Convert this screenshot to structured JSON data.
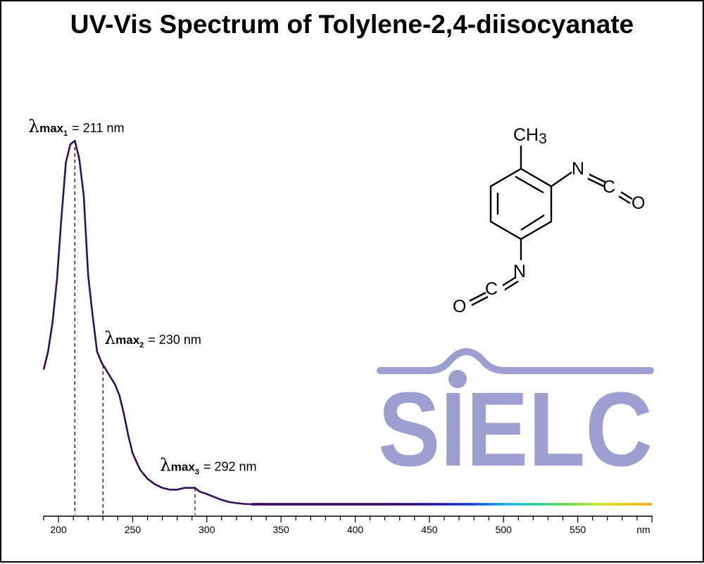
{
  "chart_data": {
    "type": "line",
    "title": "UV-Vis Spectrum of Tolylene-2,4-diisocyanate",
    "xlabel": "nm",
    "ylabel": "",
    "xlim": [
      190,
      600
    ],
    "ylim": [
      0,
      1
    ],
    "grid": false,
    "x_ticks_labeled": [
      200,
      250,
      300,
      350,
      400,
      450,
      500,
      550
    ],
    "x_unit_label": "nm",
    "series": [
      {
        "x": [
          190,
          193,
          196,
          199,
          202,
          205,
          208,
          211,
          214,
          217,
          220,
          223,
          226,
          229,
          232,
          235,
          238,
          241,
          244,
          247,
          250,
          255,
          260,
          265,
          270,
          275,
          280,
          285,
          290,
          292,
          295,
          300,
          305,
          310,
          315,
          320,
          325,
          330,
          340,
          350,
          400,
          450,
          500,
          550,
          600
        ],
        "y": [
          0.37,
          0.42,
          0.5,
          0.62,
          0.79,
          0.94,
          0.99,
          1.0,
          0.95,
          0.85,
          0.63,
          0.52,
          0.42,
          0.39,
          0.37,
          0.35,
          0.33,
          0.3,
          0.25,
          0.19,
          0.14,
          0.095,
          0.07,
          0.055,
          0.045,
          0.04,
          0.04,
          0.045,
          0.045,
          0.045,
          0.035,
          0.028,
          0.02,
          0.012,
          0.006,
          0.003,
          0.001,
          0.0,
          0.0,
          0.0,
          0.0,
          0.0,
          0.0,
          0.0,
          0.0
        ]
      }
    ],
    "peaks": [
      {
        "main": "max",
        "sub": "1",
        "text": "= 211 nm",
        "x": 211
      },
      {
        "main": "max",
        "sub": "2",
        "text": "= 230 nm",
        "x": 230
      },
      {
        "main": "max",
        "sub": "3",
        "text": "= 292 nm",
        "x": 292
      }
    ],
    "lambda_symbol": "λ"
  },
  "structure": {
    "ch3": "CH",
    "ch3_sub": "3",
    "n": "N",
    "c": "C",
    "o": "O"
  },
  "logo": {
    "text": "SIELC",
    "color": "#9d9fd0"
  },
  "colors": {
    "curve": "#35105a",
    "axis": "#000000"
  }
}
